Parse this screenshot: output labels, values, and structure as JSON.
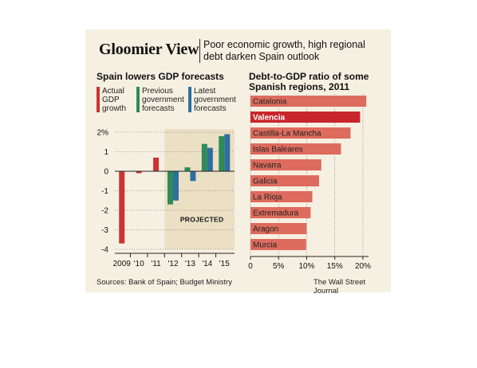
{
  "header": {
    "title": "Gloomier View",
    "subtitle": "Poor economic growth, high regional debt darken Spain outlook"
  },
  "footer": {
    "source": "Sources: Bank of Spain; Budget Ministry",
    "credit": "The Wall Street Journal"
  },
  "colors": {
    "background": "#f6f0e2",
    "actual": "#cc3333",
    "previous": "#2e8b57",
    "latest": "#2e6f9e",
    "projected_shade": "#ebdfc4",
    "debt_bar": "#dd6b5e",
    "debt_bar_highlight": "#c8262d"
  },
  "chart_data": [
    {
      "type": "bar",
      "title": "Spain lowers GDP forecasts",
      "categories": [
        "2009",
        "'10",
        "'11",
        "'12",
        "'13",
        "'14",
        "'15"
      ],
      "series": [
        {
          "name": "Actual GDP growth",
          "values": [
            -3.7,
            -0.1,
            0.7,
            null,
            null,
            null,
            null
          ]
        },
        {
          "name": "Previous government forecasts",
          "values": [
            null,
            null,
            null,
            -1.7,
            0.2,
            1.4,
            1.8
          ]
        },
        {
          "name": "Latest government forecasts",
          "values": [
            null,
            null,
            null,
            -1.5,
            -0.5,
            1.2,
            1.9
          ]
        }
      ],
      "yticks": [
        "2%",
        "1",
        "0",
        "-1",
        "-2",
        "-3",
        "-4"
      ],
      "ylim": [
        -4,
        2
      ],
      "annotation": "PROJECTED",
      "projected_from": "'12",
      "grid": true
    },
    {
      "type": "bar",
      "orientation": "horizontal",
      "title": "Debt-to-GDP ratio of some Spanish regions, 2011",
      "categories": [
        "Catalonia",
        "Valencia",
        "Castilla-La Mancha",
        "Islas Baleares",
        "Navarra",
        "Galicia",
        "La Rioja",
        "Extremadura",
        "Aragon",
        "Murcia"
      ],
      "values": [
        20.6,
        19.5,
        17.8,
        16.1,
        12.6,
        12.2,
        11.0,
        10.7,
        10.0,
        9.9
      ],
      "highlight": "Valencia",
      "xticks": [
        "0",
        "5%",
        "10%",
        "15%",
        "20%"
      ],
      "xlim": [
        0,
        21
      ],
      "grid": true
    }
  ]
}
